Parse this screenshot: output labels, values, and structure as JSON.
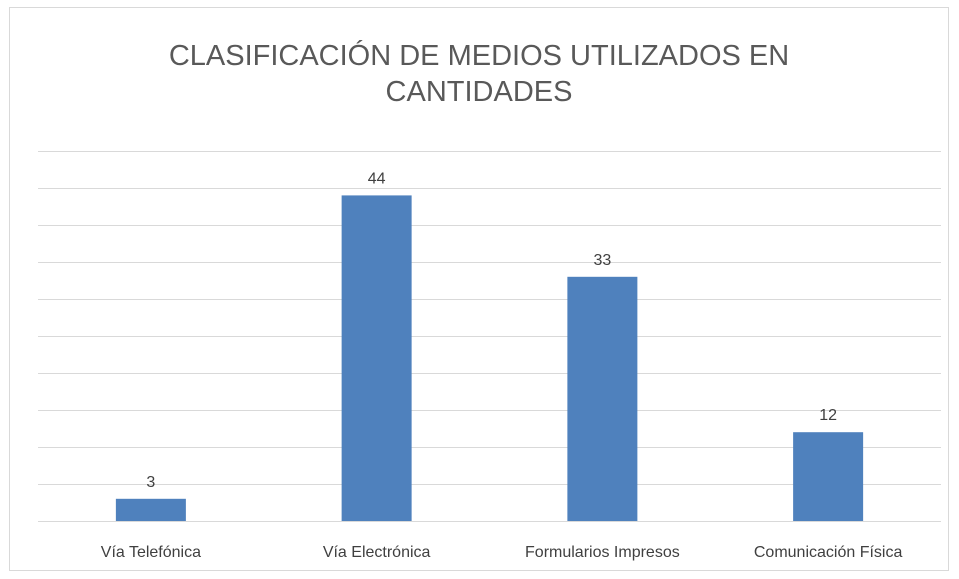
{
  "chart_data": {
    "type": "bar",
    "title": "CLASIFICACIÓN DE MEDIOS UTILIZADOS EN CANTIDADES",
    "categories": [
      "Vía Telefónica",
      "Vía Electrónica",
      "Formularios Impresos",
      "Comunicación Física"
    ],
    "values": [
      3,
      44,
      33,
      12
    ],
    "color": "#4f81bd",
    "ylim": [
      0,
      50
    ],
    "yticks": [
      0,
      5,
      10,
      15,
      20,
      25,
      30,
      35,
      40,
      45,
      50
    ],
    "grid": true
  }
}
